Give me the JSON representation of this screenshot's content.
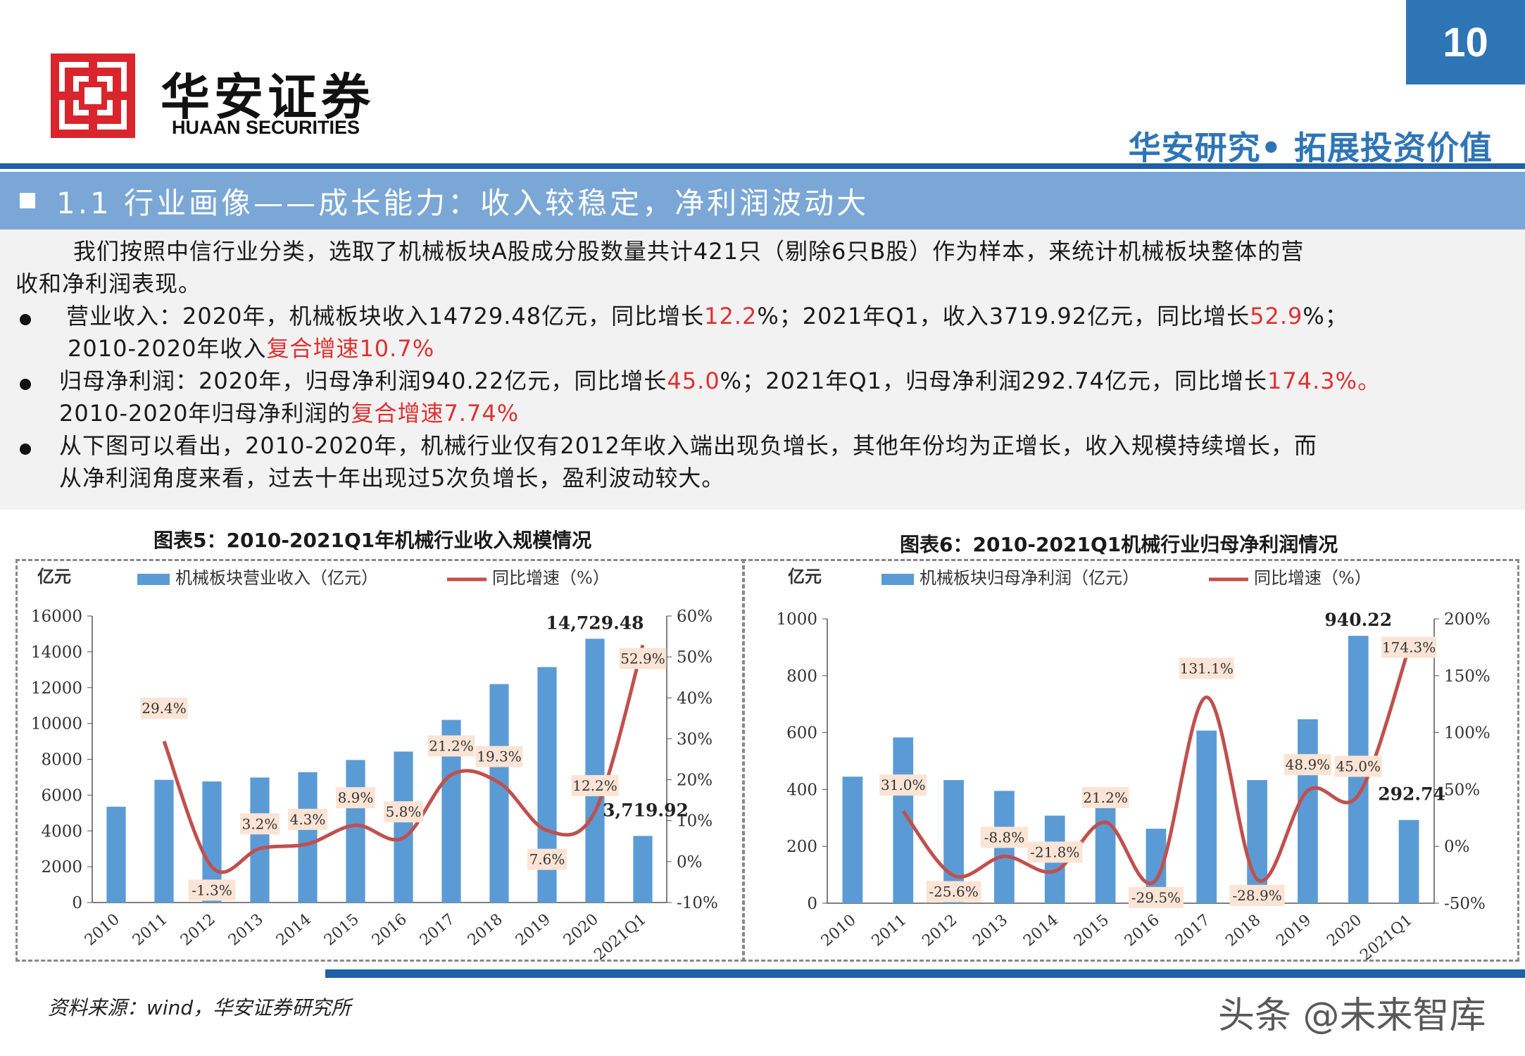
{
  "header": {
    "brand_cn": "华安证券",
    "brand_en": "HUAAN SECURITIES",
    "page_number": "10",
    "slogan": "华安研究• 拓展投资价值"
  },
  "section": {
    "title": "1.1 行业画像——成长能力：收入较稳定，净利润波动大"
  },
  "body": {
    "intro_1": "我们按照中信行业分类，选取了机械板块A股成分股数量共计421只（剔除6只B股）作为样本，来统计机械板块整体的营",
    "intro_2": "收和净利润表现。",
    "b1_a": "营业收入：2020年，机械板块收入14729.48亿元，同比增长",
    "b1_b": "12.2",
    "b1_c": "%；2021年Q1，收入3719.92亿元，同比增长",
    "b1_d": "52.9",
    "b1_e": "%；",
    "b1_f": "2010-2020年收入",
    "b1_g": "复合增速10.7%",
    "b2_a": "归母净利润：2020年，归母净利润940.22亿元，同比增长",
    "b2_b": "45.0",
    "b2_c": "%；2021年Q1，归母净利润292.74亿元，同比增长",
    "b2_d": "174.3%。",
    "b2_e": "2010-2020年归母净利润的",
    "b2_f": "复合增速7.74%",
    "b3_a": "从下图可以看出，2010-2020年，机械行业仅有2012年收入端出现负增长，其他年份均为正增长，收入规模持续增长，而",
    "b3_b": "从净利润角度来看，过去十年出现过5次负增长，盈利波动较大。"
  },
  "colors": {
    "bar": "#5b9bd5",
    "line": "#c0504d",
    "brand_blue": "#2e75b6",
    "logo_red": "#d9252b",
    "highlight_red": "#e03030"
  },
  "footer": {
    "source": "资料来源：wind，华安证券研究所",
    "watermark": "头条 @未来智库"
  },
  "chart_data": [
    {
      "type": "bar",
      "title": "图表5：2010-2021Q1年机械行业收入规模情况",
      "unit_label": "亿元",
      "categories": [
        "2010",
        "2011",
        "2012",
        "2013",
        "2014",
        "2015",
        "2016",
        "2017",
        "2018",
        "2019",
        "2020",
        "2021Q1"
      ],
      "series": [
        {
          "name": "机械板块营业收入（亿元）",
          "type": "bar",
          "axis": "left",
          "values": [
            5350,
            6850,
            6760,
            6980,
            7280,
            7960,
            8430,
            10200,
            12200,
            13150,
            14729.48,
            3719.92
          ]
        },
        {
          "name": "同比增速（%）",
          "type": "line",
          "axis": "right",
          "values": [
            null,
            29.4,
            -1.3,
            3.2,
            4.3,
            8.9,
            5.8,
            21.2,
            19.3,
            7.6,
            12.2,
            52.9
          ]
        }
      ],
      "data_labels": [
        "29.4%",
        "-1.3%",
        "3.2%",
        "4.3%",
        "8.9%",
        "5.8%",
        "21.2%",
        "19.3%",
        "7.6%",
        "12.2%",
        "52.9%"
      ],
      "value_labels": [
        "14,729.48",
        "3,719.92"
      ],
      "y_left": {
        "range": [
          0,
          16000
        ],
        "ticks": [
          "0",
          "2000",
          "4000",
          "6000",
          "8000",
          "10000",
          "12000",
          "14000",
          "16000"
        ]
      },
      "y_right": {
        "range": [
          -10,
          60
        ],
        "ticks": [
          "-10%",
          "0%",
          "10%",
          "20%",
          "30%",
          "40%",
          "50%",
          "60%"
        ]
      },
      "legend": "top"
    },
    {
      "type": "bar",
      "title": "图表6：2010-2021Q1机械行业归母净利润情况",
      "unit_label": "亿元",
      "categories": [
        "2010",
        "2011",
        "2012",
        "2013",
        "2014",
        "2015",
        "2016",
        "2017",
        "2018",
        "2019",
        "2020",
        "2021Q1"
      ],
      "series": [
        {
          "name": "机械板块归母净利润（亿元）",
          "type": "bar",
          "axis": "left",
          "values": [
            445,
            583,
            433,
            395,
            308,
            372,
            262,
            607,
            433,
            647,
            940.22,
            292.74
          ]
        },
        {
          "name": "同比增速（%）",
          "type": "line",
          "axis": "right",
          "values": [
            null,
            31.0,
            -25.6,
            -8.8,
            -21.8,
            21.2,
            -29.5,
            131.1,
            -28.9,
            48.9,
            45.0,
            174.3
          ]
        }
      ],
      "data_labels": [
        "31.0%",
        "-25.6%",
        "-8.8%",
        "-21.8%",
        "21.2%",
        "-29.5%",
        "131.1%",
        "-28.9%",
        "48.9%",
        "45.0%",
        "174.3%"
      ],
      "value_labels": [
        "940.22",
        "292.74"
      ],
      "y_left": {
        "range": [
          0,
          1000
        ],
        "ticks": [
          "0",
          "200",
          "400",
          "600",
          "800",
          "1000"
        ]
      },
      "y_right": {
        "range": [
          -50,
          200
        ],
        "ticks": [
          "-50%",
          "0%",
          "50%",
          "100%",
          "150%",
          "200%"
        ]
      },
      "legend": "top"
    }
  ]
}
